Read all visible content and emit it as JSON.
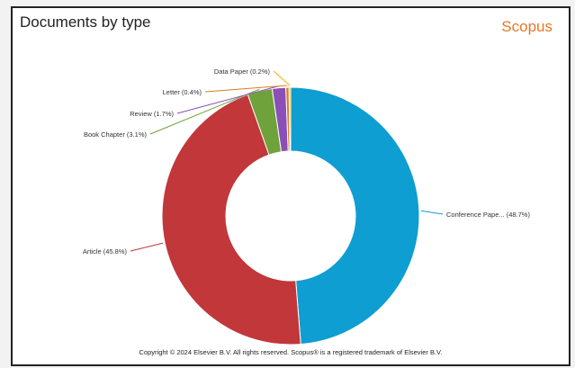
{
  "panel": {
    "title": "Documents by type",
    "brand": "Scopus",
    "footer": "Copyright © 2024 Elsevier B.V. All rights reserved. Scopus® is a registered trademark of Elsevier B.V."
  },
  "colors": {
    "brand": "#e87722"
  },
  "chart_data": {
    "type": "pie",
    "title": "Documents by type",
    "donut": true,
    "slices": [
      {
        "label": "Conference Pape... (48.7%)",
        "value": 48.7,
        "color": "#0e9ed1"
      },
      {
        "label": "Article (45.8%)",
        "value": 45.8,
        "color": "#c1373a"
      },
      {
        "label": "Book Chapter (3.1%)",
        "value": 3.1,
        "color": "#6fa23b"
      },
      {
        "label": "Review (1.7%)",
        "value": 1.7,
        "color": "#8b4fb8"
      },
      {
        "label": "Letter (0.4%)",
        "value": 0.4,
        "color": "#e07a1b"
      },
      {
        "label": "Data Paper (0.2%)",
        "value": 0.2,
        "color": "#f0b400"
      }
    ]
  }
}
